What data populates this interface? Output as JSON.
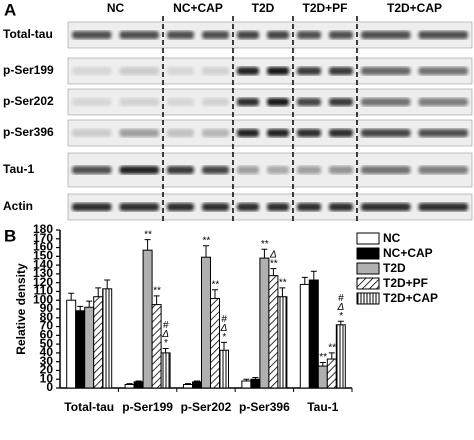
{
  "panel_a": {
    "label": "A",
    "groups": [
      "NC",
      "NC+CAP",
      "T2D",
      "T2D+PF",
      "T2D+CAP"
    ],
    "rows": [
      "Total-tau",
      "p-Ser199",
      "p-Ser202",
      "p-Ser396",
      "Tau-1",
      "Actin"
    ]
  },
  "chart_data": {
    "type": "bar",
    "panel_label": "B",
    "y_label": "Relative density",
    "categories": [
      "Total-tau",
      "p-Ser199",
      "p-Ser202",
      "p-Ser396",
      "Tau-1"
    ],
    "series": [
      {
        "name": "NC",
        "color": "#ffffff",
        "pattern": "solid",
        "values": [
          100,
          4,
          4,
          8,
          118
        ],
        "errors": [
          8,
          1,
          1,
          2,
          8
        ],
        "significance": [
          null,
          null,
          null,
          null,
          null
        ]
      },
      {
        "name": "NC+CAP",
        "color": "#000000",
        "pattern": "solid",
        "values": [
          88,
          7,
          7,
          10,
          123
        ],
        "errors": [
          5,
          1,
          1,
          2,
          10
        ],
        "significance": [
          null,
          null,
          null,
          null,
          null
        ]
      },
      {
        "name": "T2D",
        "color": "#b0b0b0",
        "pattern": "solid",
        "values": [
          92,
          157,
          149,
          148,
          25
        ],
        "errors": [
          7,
          12,
          13,
          10,
          4
        ],
        "significance": [
          null,
          [
            "**"
          ],
          [
            "**"
          ],
          [
            "**"
          ],
          [
            "**"
          ]
        ]
      },
      {
        "name": "T2D+PF",
        "color": "#ffffff",
        "pattern": "diagonal",
        "values": [
          104,
          95,
          102,
          128,
          33
        ],
        "errors": [
          10,
          10,
          10,
          8,
          7
        ],
        "significance": [
          null,
          [
            "**"
          ],
          [
            "**"
          ],
          [
            "Δ",
            "**"
          ],
          [
            "**"
          ]
        ]
      },
      {
        "name": "T2D+CAP",
        "color": "#ffffff",
        "pattern": "vertical",
        "values": [
          113,
          40,
          43,
          104,
          72
        ],
        "errors": [
          10,
          5,
          9,
          10,
          4
        ],
        "significance": [
          null,
          [
            "#",
            "Δ",
            "*"
          ],
          [
            "#",
            "Δ",
            "*"
          ],
          [
            "**"
          ],
          [
            "#",
            "Δ",
            "*"
          ]
        ]
      }
    ],
    "ylim": [
      0,
      180
    ],
    "yticks": [
      0,
      10,
      20,
      30,
      40,
      50,
      60,
      70,
      80,
      90,
      100,
      110,
      120,
      130,
      140,
      150,
      160,
      170,
      180
    ],
    "legend": "top-right"
  }
}
